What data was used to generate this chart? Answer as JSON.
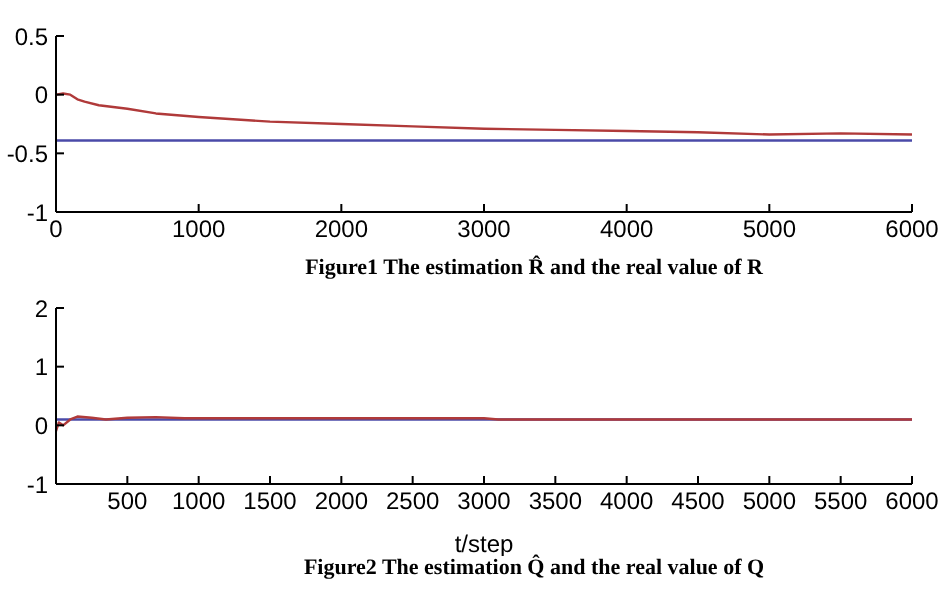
{
  "chart_data": [
    {
      "type": "line",
      "x": [
        0,
        50,
        100,
        150,
        200,
        300,
        500,
        700,
        1000,
        1500,
        2000,
        2500,
        3000,
        3500,
        4000,
        4500,
        5000,
        5500,
        6000
      ],
      "series": [
        {
          "color": "#b03a3a",
          "values": [
            0,
            0.01,
            0,
            -0.04,
            -0.06,
            -0.09,
            -0.12,
            -0.16,
            -0.19,
            -0.23,
            -0.25,
            -0.27,
            -0.29,
            -0.3,
            -0.31,
            -0.32,
            -0.34,
            -0.33,
            -0.34
          ]
        }
      ],
      "xlim": [
        0,
        6000
      ],
      "xticks": [
        0,
        1000,
        2000,
        3000,
        4000,
        5000,
        6000
      ],
      "ylim": [
        -1,
        0.5
      ],
      "yticks": [
        -1,
        -0.5,
        0,
        0.5
      ],
      "ref_lines": [
        {
          "axis": "y",
          "value": -0.39,
          "color": "#4a4aa8"
        }
      ],
      "annotations": [
        "Figure1 The estimation R̂ and the real value of R"
      ]
    },
    {
      "type": "line",
      "x": [
        0,
        20,
        50,
        100,
        150,
        250,
        350,
        500,
        700,
        900,
        1500,
        3000,
        3100,
        6000
      ],
      "series": [
        {
          "color": "#b03a3a",
          "values": [
            -0.1,
            0.05,
            0,
            0.1,
            0.15,
            0.13,
            0.1,
            0.13,
            0.14,
            0.12,
            0.12,
            0.12,
            0.1,
            0.1
          ]
        }
      ],
      "xlim": [
        0,
        6000
      ],
      "xticks": [
        500,
        1000,
        1500,
        2000,
        2500,
        3000,
        3500,
        4000,
        4500,
        5000,
        5500,
        6000
      ],
      "ylim": [
        -1,
        2
      ],
      "yticks": [
        -1,
        0,
        1,
        2
      ],
      "xlabel": "t/step",
      "ref_lines": [
        {
          "axis": "y",
          "value": 0.1,
          "color": "#4a4aa8"
        }
      ],
      "annotations": [
        "Figure2 The estimation Q̂ and the real value of Q"
      ]
    }
  ]
}
